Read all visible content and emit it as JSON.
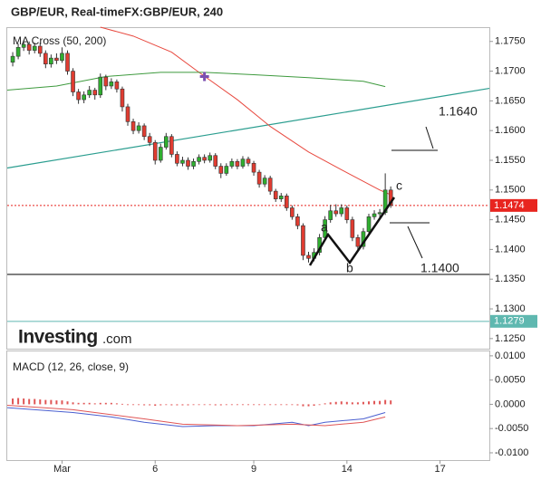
{
  "chart_data": {
    "type": "candlestick",
    "title": "GBP/EUR, Real-timeFX:GBP/EUR, 240",
    "indicator_label": "MA Cross (50, 200)",
    "xlim": [
      -1,
      87
    ],
    "xticks": [
      {
        "value": 9,
        "label": "Mar"
      },
      {
        "value": 26,
        "label": "6"
      },
      {
        "value": 44,
        "label": "9"
      },
      {
        "value": 61,
        "label": "14"
      },
      {
        "value": 78,
        "label": "17"
      }
    ],
    "ylim": [
      1.1233,
      1.1774
    ],
    "yticks": [
      {
        "value": 1.175,
        "label": "1.1750"
      },
      {
        "value": 1.17,
        "label": "1.1700"
      },
      {
        "value": 1.165,
        "label": "1.1650"
      },
      {
        "value": 1.16,
        "label": "1.1600"
      },
      {
        "value": 1.155,
        "label": "1.1550"
      },
      {
        "value": 1.15,
        "label": "1.1500"
      },
      {
        "value": 1.145,
        "label": "1.1450"
      },
      {
        "value": 1.14,
        "label": "1.1400"
      },
      {
        "value": 1.135,
        "label": "1.1350"
      },
      {
        "value": 1.13,
        "label": "1.1300"
      },
      {
        "value": 1.125,
        "label": "1.1250"
      }
    ],
    "up_color": "#2fae2f",
    "down_color": "#e03c31",
    "candles": [
      [
        1.1715,
        1.1732,
        1.1708,
        1.1725
      ],
      [
        1.1725,
        1.1746,
        1.172,
        1.174
      ],
      [
        1.174,
        1.1752,
        1.1734,
        1.1745
      ],
      [
        1.1745,
        1.175,
        1.1728,
        1.1735
      ],
      [
        1.1735,
        1.1748,
        1.173,
        1.1742
      ],
      [
        1.1742,
        1.1748,
        1.1724,
        1.173
      ],
      [
        1.173,
        1.1735,
        1.1705,
        1.1712
      ],
      [
        1.1712,
        1.1728,
        1.1706,
        1.1722
      ],
      [
        1.1722,
        1.173,
        1.1712,
        1.1718
      ],
      [
        1.1718,
        1.174,
        1.1714,
        1.173
      ],
      [
        1.173,
        1.1735,
        1.1694,
        1.17
      ],
      [
        1.17,
        1.1705,
        1.1658,
        1.1665
      ],
      [
        1.1665,
        1.167,
        1.1645,
        1.1652
      ],
      [
        1.1652,
        1.1666,
        1.1646,
        1.166
      ],
      [
        1.166,
        1.1675,
        1.1655,
        1.1668
      ],
      [
        1.1668,
        1.1672,
        1.1652,
        1.166
      ],
      [
        1.166,
        1.1696,
        1.1655,
        1.169
      ],
      [
        1.169,
        1.1694,
        1.1668,
        1.1675
      ],
      [
        1.1675,
        1.1688,
        1.167,
        1.1682
      ],
      [
        1.1682,
        1.1686,
        1.1664,
        1.167
      ],
      [
        1.167,
        1.1674,
        1.1632,
        1.164
      ],
      [
        1.164,
        1.1645,
        1.1608,
        1.1615
      ],
      [
        1.1615,
        1.162,
        1.1594,
        1.16
      ],
      [
        1.16,
        1.1614,
        1.1595,
        1.1608
      ],
      [
        1.1608,
        1.1612,
        1.1584,
        1.159
      ],
      [
        1.159,
        1.1596,
        1.1574,
        1.158
      ],
      [
        1.158,
        1.1584,
        1.1543,
        1.155
      ],
      [
        1.155,
        1.1578,
        1.1546,
        1.1572
      ],
      [
        1.1572,
        1.1596,
        1.1568,
        1.159
      ],
      [
        1.159,
        1.1594,
        1.1555,
        1.156
      ],
      [
        1.156,
        1.1565,
        1.154,
        1.1545
      ],
      [
        1.1545,
        1.1556,
        1.154,
        1.155
      ],
      [
        1.155,
        1.1555,
        1.1534,
        1.154
      ],
      [
        1.154,
        1.1553,
        1.1535,
        1.1548
      ],
      [
        1.1548,
        1.156,
        1.1543,
        1.1555
      ],
      [
        1.1555,
        1.156,
        1.1545,
        1.155
      ],
      [
        1.155,
        1.1563,
        1.1546,
        1.1558
      ],
      [
        1.1558,
        1.1562,
        1.1535,
        1.154
      ],
      [
        1.154,
        1.1545,
        1.152,
        1.1528
      ],
      [
        1.1528,
        1.1545,
        1.1524,
        1.154
      ],
      [
        1.154,
        1.1553,
        1.1536,
        1.1548
      ],
      [
        1.1548,
        1.1552,
        1.1535,
        1.154
      ],
      [
        1.154,
        1.1557,
        1.1536,
        1.1552
      ],
      [
        1.1552,
        1.1556,
        1.154,
        1.1545
      ],
      [
        1.1545,
        1.1549,
        1.1524,
        1.153
      ],
      [
        1.153,
        1.1534,
        1.1504,
        1.151
      ],
      [
        1.151,
        1.1525,
        1.1505,
        1.152
      ],
      [
        1.152,
        1.1524,
        1.1492,
        1.1498
      ],
      [
        1.1498,
        1.1502,
        1.148,
        1.1485
      ],
      [
        1.1485,
        1.1495,
        1.148,
        1.149
      ],
      [
        1.149,
        1.1494,
        1.1465,
        1.147
      ],
      [
        1.147,
        1.1474,
        1.145,
        1.1455
      ],
      [
        1.1455,
        1.146,
        1.1434,
        1.144
      ],
      [
        1.144,
        1.1444,
        1.1382,
        1.139
      ],
      [
        1.139,
        1.1396,
        1.1378,
        1.1385
      ],
      [
        1.1385,
        1.1402,
        1.138,
        1.1395
      ],
      [
        1.1395,
        1.1426,
        1.139,
        1.142
      ],
      [
        1.142,
        1.1456,
        1.1415,
        1.145
      ],
      [
        1.145,
        1.1475,
        1.1445,
        1.1465
      ],
      [
        1.1465,
        1.1476,
        1.1455,
        1.146
      ],
      [
        1.146,
        1.1476,
        1.1455,
        1.147
      ],
      [
        1.147,
        1.1474,
        1.1444,
        1.145
      ],
      [
        1.145,
        1.1455,
        1.1414,
        1.142
      ],
      [
        1.142,
        1.1425,
        1.1398,
        1.1405
      ],
      [
        1.1405,
        1.1436,
        1.14,
        1.143
      ],
      [
        1.143,
        1.146,
        1.1425,
        1.1455
      ],
      [
        1.1455,
        1.1466,
        1.145,
        1.146
      ],
      [
        1.146,
        1.1468,
        1.1452,
        1.1462
      ],
      [
        1.1462,
        1.1528,
        1.1458,
        1.15
      ],
      [
        1.15,
        1.1506,
        1.147,
        1.1474
      ]
    ],
    "ma_lines": [
      {
        "color": "#e8493f",
        "x": [
          16,
          22,
          29,
          34,
          41,
          47,
          54,
          60,
          67,
          69
        ],
        "values": [
          1.1774,
          1.1759,
          1.1732,
          1.1698,
          1.1652,
          1.1607,
          1.1564,
          1.1534,
          1.15,
          1.1492
        ]
      },
      {
        "color": "#3e9a3e",
        "x": [
          -1,
          8,
          17,
          27,
          35,
          44,
          54,
          64,
          68
        ],
        "values": [
          1.1668,
          1.1675,
          1.1691,
          1.1698,
          1.1698,
          1.1694,
          1.1689,
          1.1683,
          1.1674
        ]
      }
    ],
    "cross_marker": {
      "x": 35,
      "value": 1.1691,
      "color": "#7b4fb0"
    },
    "trend_line": {
      "color": "#2a9d8f",
      "x": [
        -1,
        87
      ],
      "values": [
        1.1537,
        1.1671
      ]
    },
    "support_line": {
      "color": "#000000",
      "value": 1.1358
    },
    "last_price": {
      "value": 1.1474,
      "color": "#e8251f"
    },
    "level_line": {
      "value": 1.1279,
      "color": "#5fb8b0"
    },
    "annotations": {
      "target_up": "1.1640",
      "target_down": "1.1400",
      "points": [
        "a",
        "b",
        "c"
      ]
    },
    "macd": {
      "title": "MACD (12, 26, close, 9)",
      "ylim": [
        -0.0115,
        0.0111
      ],
      "yticks": [
        {
          "value": 0.01,
          "label": "0.0100"
        },
        {
          "value": 0.005,
          "label": "0.0050"
        },
        {
          "value": 0,
          "label": "0.0000"
        },
        {
          "value": -0.005,
          "label": "-0.0050"
        },
        {
          "value": -0.01,
          "label": "-0.0100"
        }
      ],
      "histogram": {
        "color": "#e05555",
        "values": [
          0.0012,
          0.0013,
          0.0012,
          0.0011,
          0.0011,
          0.001,
          0.0009,
          0.0009,
          0.0008,
          0.0008,
          0.0006,
          0.0004,
          0.0003,
          0.0003,
          0.0003,
          0.0002,
          0.0003,
          0.0003,
          0.0003,
          0.0002,
          0.0001,
          0.0,
          -0.0001,
          -0.0001,
          -0.0002,
          -0.0002,
          -0.0003,
          -0.0002,
          -0.0001,
          -0.0002,
          -0.0002,
          -0.0002,
          -0.0002,
          -0.0001,
          -0.0001,
          -0.0001,
          -0.0001,
          -0.0002,
          -0.0002,
          -0.0001,
          -0.0001,
          -0.0001,
          0.0,
          0.0,
          -0.0001,
          -0.0001,
          -0.0001,
          -0.0001,
          -0.0001,
          -0.0001,
          -0.0001,
          -0.0001,
          -0.0002,
          -0.0004,
          -0.0004,
          -0.0003,
          -0.0001,
          0.0002,
          0.0004,
          0.0005,
          0.0006,
          0.0005,
          0.0004,
          0.0004,
          0.0005,
          0.0006,
          0.0007,
          0.0007,
          0.0009,
          0.0008
        ]
      },
      "lines": [
        {
          "color": "#4a5fd0",
          "x": [
            -1,
            4,
            11,
            18,
            24,
            31,
            37,
            44,
            51,
            54,
            57,
            61,
            64,
            68
          ],
          "values": [
            -0.0007,
            -0.0011,
            -0.0017,
            -0.0026,
            -0.0037,
            -0.0046,
            -0.0044,
            -0.0044,
            -0.0037,
            -0.0044,
            -0.0037,
            -0.0033,
            -0.003,
            -0.0017
          ]
        },
        {
          "color": "#e05555",
          "x": [
            -1,
            11,
            24,
            31,
            41,
            51,
            57,
            64,
            68
          ],
          "values": [
            -0.0002,
            -0.0011,
            -0.003,
            -0.0041,
            -0.0044,
            -0.0041,
            -0.0044,
            -0.0037,
            -0.0026
          ]
        }
      ]
    }
  },
  "logo": {
    "brand": "Investing",
    "suffix": ".com"
  }
}
